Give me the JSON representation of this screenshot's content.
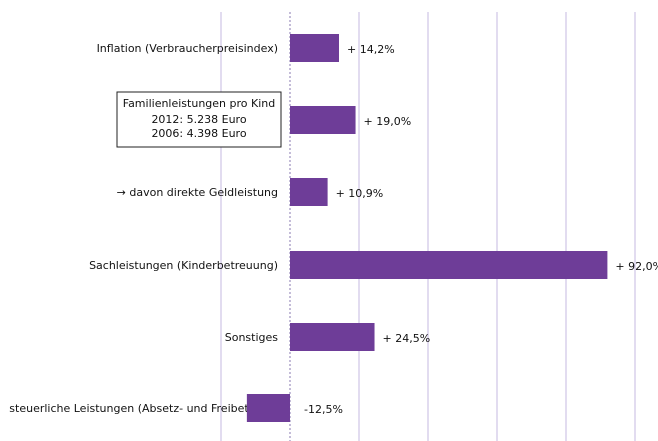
{
  "chart_data": {
    "type": "hbar",
    "categories": [
      "Inflation (Verbraucherpreisindex)",
      "Familienleistungen pro Kind",
      "→ davon direkte Geldleistung",
      "Sachleistungen (Kinderbetreuung)",
      "Sonstiges",
      "steuerliche Leistungen (Absetz- und Freibeträge)"
    ],
    "annotations": [
      "2012: 5.238 Euro",
      "2006: 4.398 Euro"
    ],
    "values": [
      14.2,
      19.0,
      10.9,
      92.0,
      24.5,
      -12.5
    ],
    "value_labels": [
      "+ 14,2%",
      "+ 19,0%",
      "+ 10,9%",
      "+ 92,0%",
      "+ 24,5%",
      "-12,5%"
    ],
    "color": "#6e3d98",
    "xlim": [
      -20,
      100
    ],
    "xticks": [
      -20,
      0,
      20,
      40,
      60,
      80,
      100
    ],
    "grid": true
  }
}
